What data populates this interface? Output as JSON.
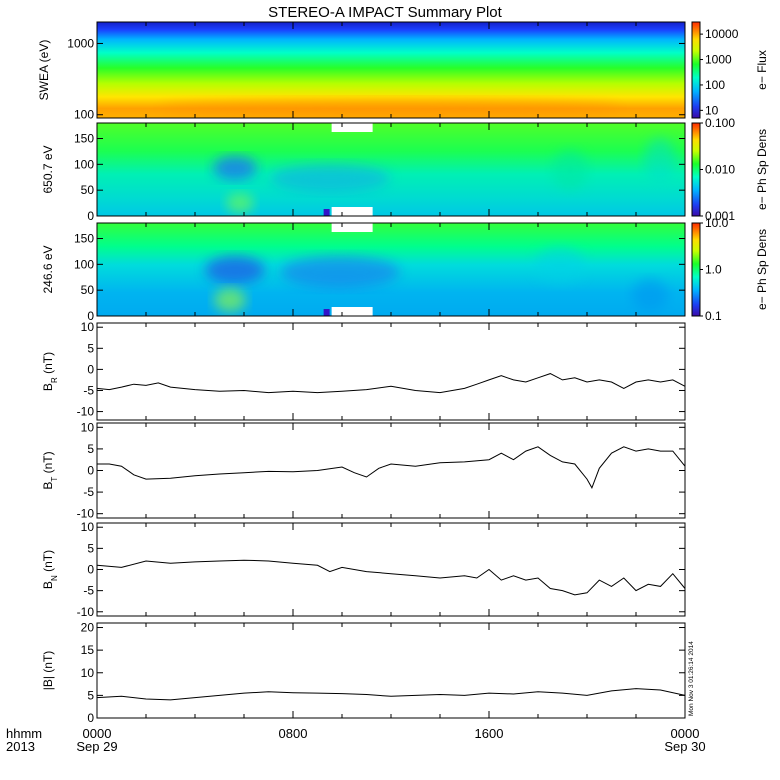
{
  "title": "STEREO-A IMPACT Summary Plot",
  "stamp": "Mon Nov 3 01:26:14 2014",
  "time_axis": {
    "row_label": "hhmm",
    "year_label": "2013",
    "ticks": [
      {
        "t": 0,
        "time": "0000",
        "date": "Sep 29"
      },
      {
        "t": 8,
        "time": "0800",
        "date": ""
      },
      {
        "t": 16,
        "time": "1600",
        "date": ""
      },
      {
        "t": 24,
        "time": "0000",
        "date": "Sep 30"
      }
    ],
    "range_hours": [
      0,
      24
    ]
  },
  "colors": {
    "spectrum": [
      "#3b0aa8",
      "#1d3ef2",
      "#00b4ff",
      "#00ffc8",
      "#1aff2a",
      "#c8ff00",
      "#ffdc00",
      "#ff7a00",
      "#ff2a00"
    ],
    "line": "#000000"
  },
  "chart_data": [
    {
      "type": "heatmap",
      "ylabel": "SWEA (eV)",
      "ylog": true,
      "ylim": [
        90,
        2000
      ],
      "yticks": [
        {
          "v": 100,
          "label": "100"
        },
        {
          "v": 1000,
          "label": "1000"
        }
      ],
      "colorbar": {
        "label": "e− Flux",
        "log": true,
        "range": [
          5,
          30000
        ],
        "ticks": [
          {
            "v": 10,
            "label": "10"
          },
          {
            "v": 100,
            "label": "100"
          },
          {
            "v": 1000,
            "label": "1000"
          },
          {
            "v": 10000,
            "label": "10000"
          }
        ]
      }
    },
    {
      "type": "heatmap",
      "ylabel": "650.7 eV",
      "ylim": [
        0,
        180
      ],
      "yticks": [
        {
          "v": 0,
          "label": "0"
        },
        {
          "v": 50,
          "label": "50"
        },
        {
          "v": 100,
          "label": "100"
        },
        {
          "v": 150,
          "label": "150"
        }
      ],
      "data_gap_hours": [
        9.25,
        11.25
      ],
      "colorbar": {
        "label": "e− Ph Sp Dens",
        "log": true,
        "range": [
          0.001,
          0.1
        ],
        "ticks": [
          {
            "v": 0.001,
            "label": "0.001"
          },
          {
            "v": 0.01,
            "label": "0.010"
          },
          {
            "v": 0.1,
            "label": "0.100"
          }
        ]
      }
    },
    {
      "type": "heatmap",
      "ylabel": "246.6 eV",
      "ylim": [
        0,
        180
      ],
      "yticks": [
        {
          "v": 0,
          "label": "0"
        },
        {
          "v": 50,
          "label": "50"
        },
        {
          "v": 100,
          "label": "100"
        },
        {
          "v": 150,
          "label": "150"
        }
      ],
      "data_gap_hours": [
        9.25,
        11.25
      ],
      "colorbar": {
        "label": "e− Ph Sp Dens",
        "log": true,
        "range": [
          0.1,
          10
        ],
        "ticks": [
          {
            "v": 0.1,
            "label": "0.1"
          },
          {
            "v": 1,
            "label": "1.0"
          },
          {
            "v": 10,
            "label": "10.0"
          }
        ]
      }
    },
    {
      "type": "line",
      "ylabel_main": "B",
      "ylabel_sub": "R",
      "ylabel_tail": " (nT)",
      "ylim": [
        -12,
        11
      ],
      "yticks": [
        -10,
        -5,
        0,
        5,
        10
      ],
      "x": [
        0,
        0.5,
        1,
        1.5,
        2,
        2.5,
        3,
        4,
        5,
        6,
        7,
        8,
        9,
        10,
        11,
        12,
        13,
        14,
        15,
        15.5,
        16,
        16.5,
        17,
        17.5,
        18,
        18.5,
        19,
        19.5,
        20,
        20.5,
        21,
        21.5,
        22,
        22.5,
        23,
        23.5,
        24
      ],
      "y": [
        -4.5,
        -4.8,
        -4.2,
        -3.5,
        -3.8,
        -3.2,
        -4.2,
        -4.8,
        -5.2,
        -5.0,
        -5.5,
        -5.2,
        -5.5,
        -5.2,
        -4.8,
        -4.0,
        -5.0,
        -5.5,
        -4.5,
        -3.5,
        -2.5,
        -1.5,
        -2.5,
        -3.0,
        -2.0,
        -1.0,
        -2.5,
        -2.0,
        -3.0,
        -2.5,
        -3.0,
        -4.5,
        -3.0,
        -2.5,
        -3.0,
        -2.5,
        -4.0
      ]
    },
    {
      "type": "line",
      "ylabel_main": "B",
      "ylabel_sub": "T",
      "ylabel_tail": " (nT)",
      "ylim": [
        -11,
        11
      ],
      "yticks": [
        -10,
        -5,
        0,
        5,
        10
      ],
      "x": [
        0,
        0.5,
        1,
        1.5,
        2,
        3,
        4,
        5,
        6,
        7,
        8,
        9,
        10,
        10.5,
        11,
        11.5,
        12,
        13,
        14,
        15,
        16,
        16.5,
        17,
        17.5,
        18,
        18.5,
        19,
        19.5,
        20,
        20.2,
        20.5,
        21,
        21.5,
        22,
        22.5,
        23,
        23.5,
        24
      ],
      "y": [
        1.5,
        1.5,
        1.0,
        -1.0,
        -2.0,
        -1.8,
        -1.2,
        -0.8,
        -0.5,
        -0.2,
        -0.3,
        0.0,
        0.8,
        -0.5,
        -1.5,
        0.5,
        1.5,
        1.0,
        1.8,
        2.0,
        2.5,
        4.0,
        2.5,
        4.5,
        5.5,
        3.5,
        2.0,
        1.5,
        -2.0,
        -4.0,
        0.5,
        4.0,
        5.5,
        4.5,
        5.0,
        4.5,
        4.5,
        1.0
      ]
    },
    {
      "type": "line",
      "ylabel_main": "B",
      "ylabel_sub": "N",
      "ylabel_tail": " (nT)",
      "ylim": [
        -11,
        11
      ],
      "yticks": [
        -10,
        -5,
        0,
        5,
        10
      ],
      "x": [
        0,
        1,
        2,
        3,
        4,
        5,
        6,
        7,
        8,
        9,
        9.5,
        10,
        11,
        12,
        13,
        14,
        15,
        15.5,
        16,
        16.5,
        17,
        17.5,
        18,
        18.5,
        19,
        19.5,
        20,
        20.5,
        21,
        21.5,
        22,
        22.5,
        23,
        23.5,
        24
      ],
      "y": [
        1.0,
        0.5,
        2.0,
        1.5,
        1.8,
        2.0,
        2.2,
        2.0,
        1.5,
        1.0,
        -0.5,
        0.5,
        -0.5,
        -1.0,
        -1.5,
        -2.0,
        -1.5,
        -2.0,
        0.0,
        -2.5,
        -1.5,
        -2.5,
        -2.0,
        -4.5,
        -5.0,
        -6.0,
        -5.5,
        -2.5,
        -4.0,
        -2.0,
        -5.0,
        -3.5,
        -4.0,
        -1.0,
        -4.5
      ]
    },
    {
      "type": "line",
      "ylabel_main": "|B|",
      "ylabel_sub": "",
      "ylabel_tail": " (nT)",
      "ylim": [
        0,
        21
      ],
      "yticks": [
        0,
        5,
        10,
        15,
        20
      ],
      "x": [
        0,
        1,
        2,
        3,
        4,
        5,
        6,
        7,
        8,
        9,
        10,
        11,
        12,
        13,
        14,
        15,
        16,
        17,
        18,
        19,
        20,
        21,
        22,
        23,
        24
      ],
      "y": [
        4.5,
        4.8,
        4.2,
        4.0,
        4.5,
        5.0,
        5.5,
        5.8,
        5.6,
        5.5,
        5.4,
        5.2,
        4.8,
        5.0,
        5.2,
        5.0,
        5.5,
        5.3,
        5.8,
        5.5,
        5.0,
        6.0,
        6.5,
        6.2,
        5.0
      ]
    }
  ]
}
